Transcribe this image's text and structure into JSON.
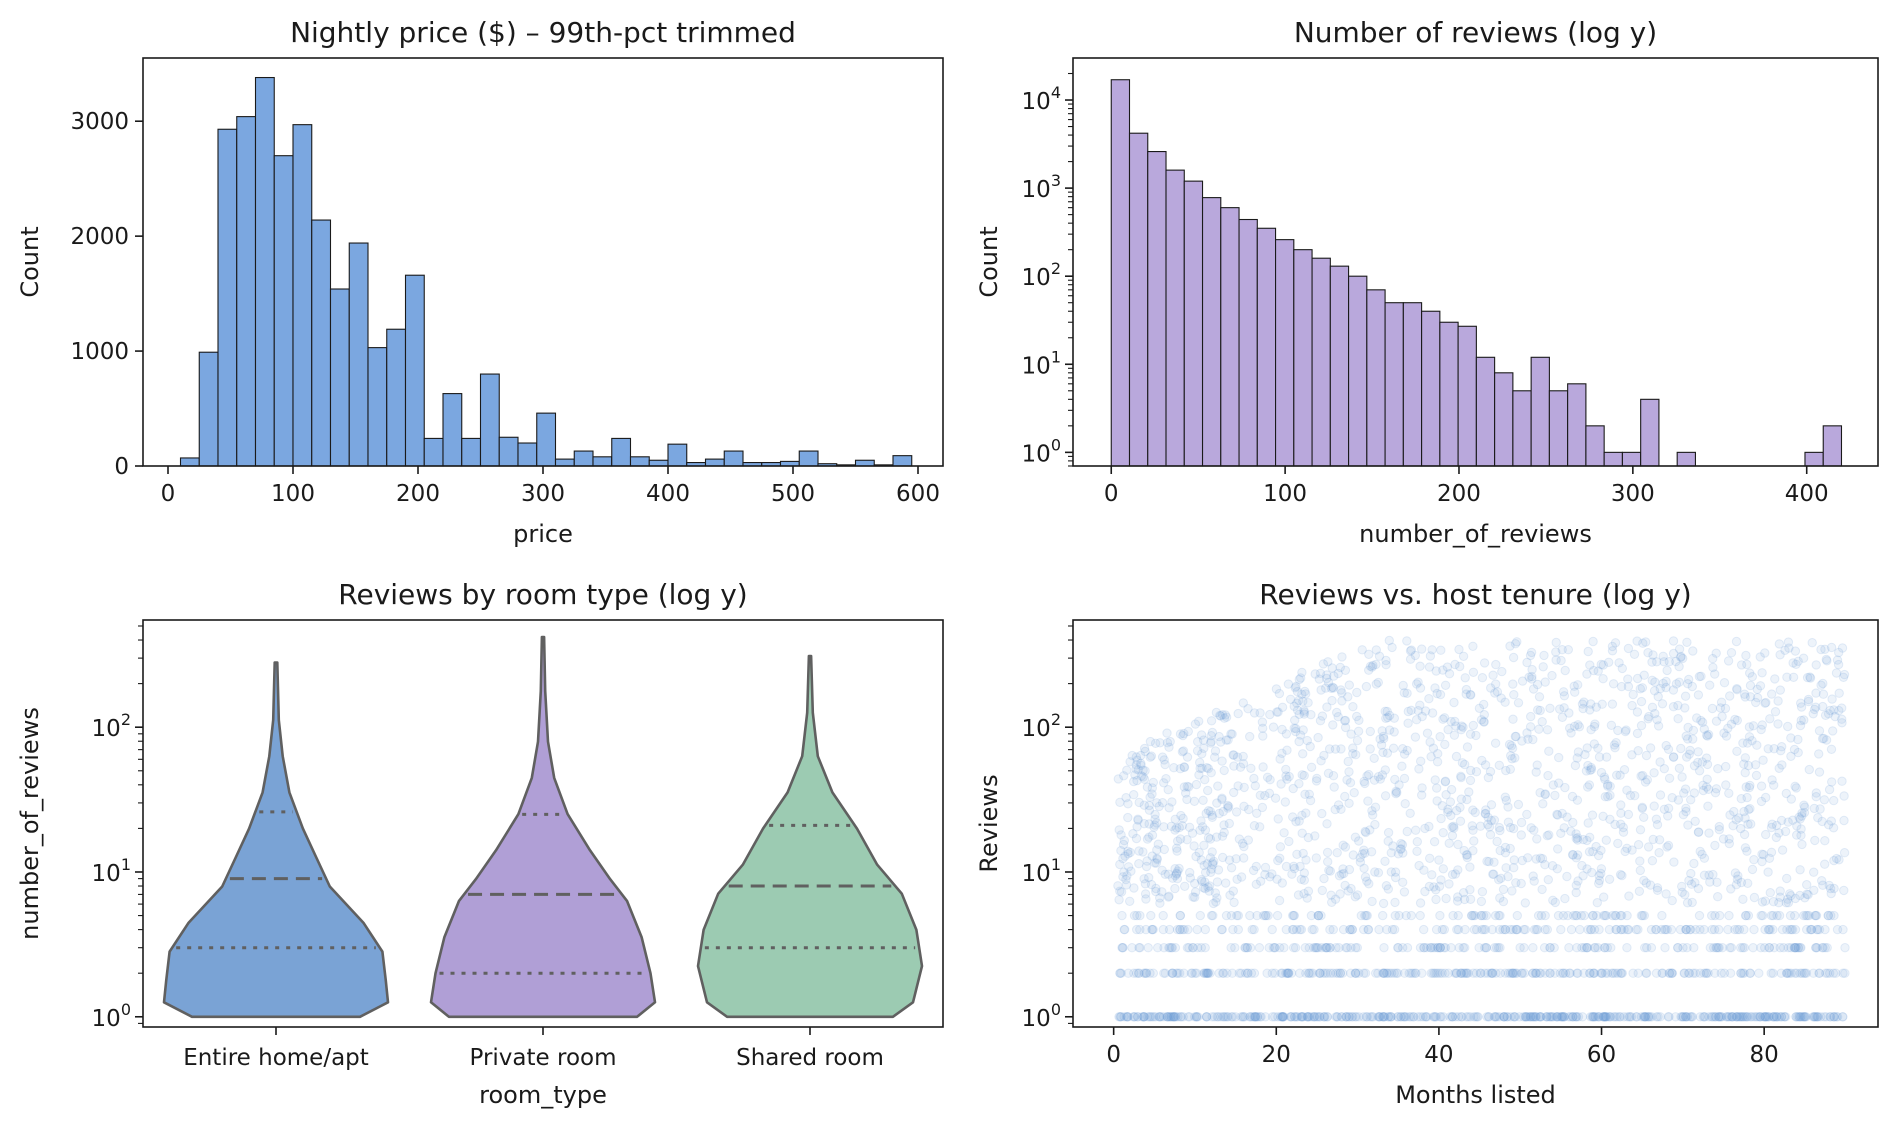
{
  "chart_data": [
    {
      "type": "bar",
      "title": "Nightly price ($)  – 99th-pct trimmed",
      "xlabel": "price",
      "ylabel": "Count",
      "bin_width": 15,
      "bin_starts": [
        10,
        25,
        40,
        55,
        70,
        85,
        100,
        115,
        130,
        145,
        160,
        175,
        190,
        205,
        220,
        235,
        250,
        265,
        280,
        295,
        310,
        325,
        340,
        355,
        370,
        385,
        400,
        415,
        430,
        445,
        460,
        475,
        490,
        505,
        520,
        535,
        550,
        565,
        580
      ],
      "values": [
        70,
        990,
        2930,
        3040,
        3380,
        2700,
        2970,
        2140,
        1540,
        1940,
        1030,
        1190,
        1660,
        240,
        630,
        240,
        800,
        250,
        200,
        460,
        60,
        130,
        80,
        240,
        80,
        50,
        190,
        30,
        60,
        130,
        30,
        30,
        40,
        130,
        20,
        10,
        50,
        10,
        90
      ],
      "xlim": [
        -20,
        620
      ],
      "ylim": [
        0,
        3550
      ],
      "xticks": [
        0,
        100,
        200,
        300,
        400,
        500,
        600
      ],
      "yticks": [
        0,
        1000,
        2000,
        3000
      ],
      "grid": false,
      "color": "#7ba7e0"
    },
    {
      "type": "bar",
      "title": "Number of reviews  (log y)",
      "xlabel": "number_of_reviews",
      "ylabel": "Count",
      "yscale": "log",
      "bin_width": 10.5,
      "bin_starts": [
        0,
        10.5,
        21,
        31.5,
        42,
        52.5,
        63,
        73.5,
        84,
        94.5,
        105,
        115.5,
        126,
        136.5,
        147,
        157.5,
        168,
        178.5,
        189,
        199.5,
        210,
        220.5,
        231,
        241.5,
        252,
        262.5,
        273,
        283.5,
        294,
        304.5,
        315,
        325.5,
        336,
        346.5,
        357,
        367.5,
        378,
        388.5,
        399,
        409.5
      ],
      "values": [
        17000,
        4200,
        2600,
        1600,
        1200,
        780,
        600,
        440,
        350,
        260,
        200,
        160,
        130,
        100,
        70,
        50,
        50,
        40,
        30,
        27,
        12,
        8,
        5,
        12,
        5,
        6,
        2,
        1,
        1,
        4,
        0,
        1,
        0,
        0,
        0,
        0,
        0,
        0,
        1,
        2
      ],
      "xlim": [
        -22,
        441
      ],
      "ylim": [
        0.7,
        30000
      ],
      "xticks": [
        0,
        100,
        200,
        300,
        400
      ],
      "yticks": [
        1,
        10,
        100,
        1000,
        10000
      ],
      "ytick_labels": [
        "10^0",
        "10^1",
        "10^2",
        "10^3",
        "10^4"
      ],
      "grid": false,
      "color": "#b9a8dc"
    },
    {
      "type": "violin",
      "title": "Reviews by room type (log y)",
      "xlabel": "room_type",
      "ylabel": "number_of_reviews",
      "yscale": "log",
      "categories": [
        "Entire home/apt",
        "Private room",
        "Shared room"
      ],
      "colors": [
        "#7aa3d5",
        "#b09fd6",
        "#9ccbb2"
      ],
      "min": [
        1,
        1,
        1
      ],
      "max": [
        280,
        420,
        310
      ],
      "quartile_1": [
        3,
        2,
        3
      ],
      "median": [
        9,
        7,
        8
      ],
      "quartile_3": [
        26,
        25,
        21
      ],
      "ylim": [
        0.85,
        550
      ],
      "yticks": [
        1,
        10,
        100
      ],
      "ytick_labels": [
        "10^0",
        "10^1",
        "10^2"
      ],
      "grid": false,
      "inner": "quartile"
    },
    {
      "type": "scatter",
      "title": "Reviews vs. host tenure (log y)",
      "xlabel": "Months listed",
      "ylabel": "Reviews",
      "yscale": "log",
      "xlim": [
        -5,
        94
      ],
      "ylim": [
        0.85,
        550
      ],
      "xticks": [
        0,
        20,
        40,
        60,
        80
      ],
      "yticks": [
        1,
        10,
        100
      ],
      "ytick_labels": [
        "10^0",
        "10^1",
        "10^2"
      ],
      "x_range": [
        0.5,
        90
      ],
      "y_range": [
        1,
        420
      ],
      "point_alpha": 0.12,
      "color": "#6a9ad8",
      "grid": false
    }
  ]
}
